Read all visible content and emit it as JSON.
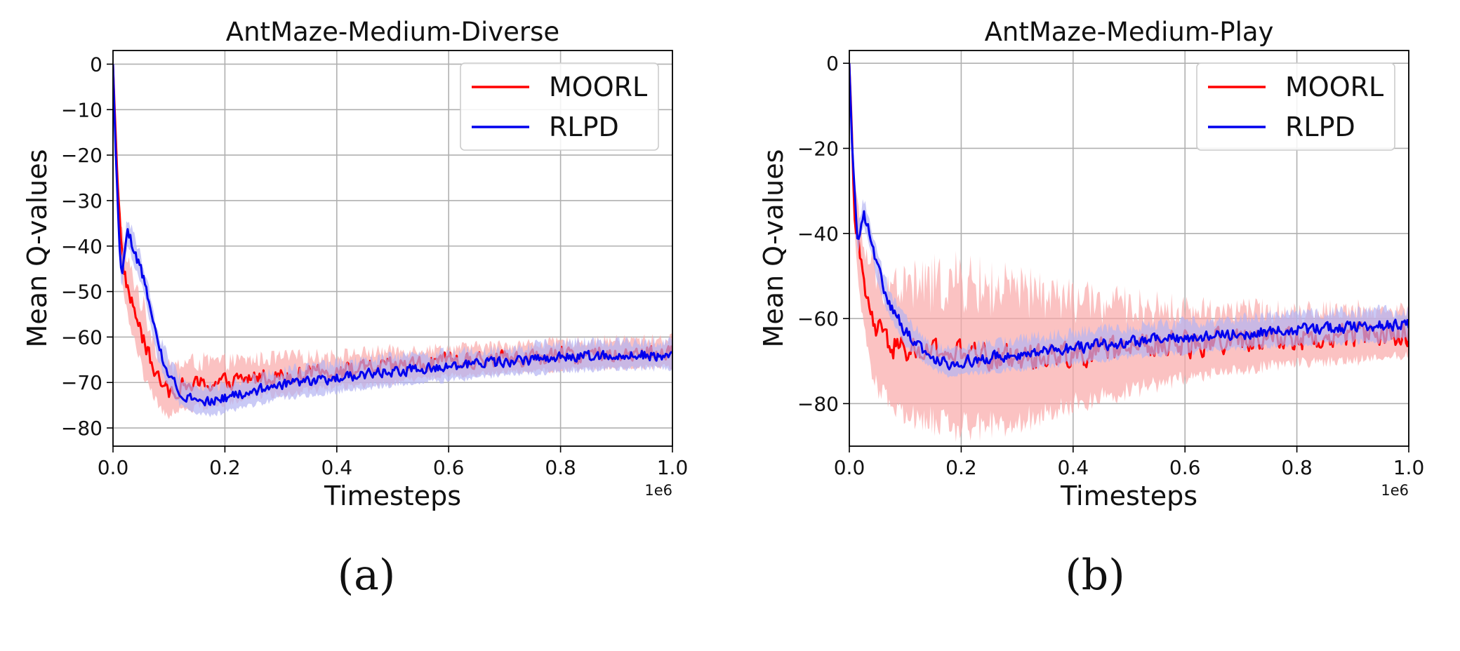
{
  "chart_data": [
    {
      "type": "line",
      "title": "AntMaze-Medium-Diverse",
      "xlabel": "Timesteps",
      "ylabel": "Mean Q-values",
      "x_offset_text": "1e6",
      "xlim": [
        0.0,
        1.0
      ],
      "ylim": [
        -84,
        3
      ],
      "xticks": [
        0.0,
        0.2,
        0.4,
        0.6,
        0.8,
        1.0
      ],
      "xtick_labels": [
        "0.0",
        "0.2",
        "0.4",
        "0.6",
        "0.8",
        "1.0"
      ],
      "yticks": [
        0,
        -10,
        -20,
        -30,
        -40,
        -50,
        -60,
        -70,
        -80
      ],
      "ytick_labels": [
        "0",
        "−10",
        "−20",
        "−30",
        "−40",
        "−50",
        "−60",
        "−70",
        "−80"
      ],
      "grid": true,
      "legend_position": "top-right",
      "caption": "(a)",
      "series": [
        {
          "name": "MOORL",
          "color": "#ff0000",
          "band_color": "#f9a8a8",
          "x": [
            0.0,
            0.005,
            0.01,
            0.015,
            0.02,
            0.03,
            0.04,
            0.05,
            0.06,
            0.07,
            0.08,
            0.09,
            0.1,
            0.12,
            0.15,
            0.2,
            0.25,
            0.3,
            0.4,
            0.5,
            0.6,
            0.7,
            0.8,
            0.9,
            1.0
          ],
          "y": [
            0,
            -15,
            -30,
            -40,
            -46,
            -51,
            -55,
            -59,
            -63,
            -66,
            -69,
            -71,
            -72,
            -71,
            -70.5,
            -70,
            -69,
            -68.5,
            -67.5,
            -66.5,
            -65.5,
            -64.8,
            -64.2,
            -63.8,
            -63.5
          ],
          "spread": [
            1,
            3,
            4,
            5,
            5,
            6,
            7,
            7,
            7,
            7,
            6,
            6,
            5,
            5,
            5,
            4.5,
            4,
            4,
            3.5,
            3.5,
            3,
            3,
            3,
            3,
            3
          ],
          "noise": 2.4
        },
        {
          "name": "RLPD",
          "color": "#0000ee",
          "band_color": "#b4b4f2",
          "x": [
            0.0,
            0.005,
            0.01,
            0.015,
            0.02,
            0.025,
            0.03,
            0.04,
            0.05,
            0.06,
            0.07,
            0.08,
            0.1,
            0.12,
            0.15,
            0.18,
            0.2,
            0.25,
            0.3,
            0.4,
            0.5,
            0.6,
            0.7,
            0.8,
            0.9,
            1.0
          ],
          "y": [
            0,
            -20,
            -35,
            -47,
            -42,
            -37,
            -38,
            -42,
            -45,
            -50,
            -56,
            -62,
            -68,
            -72,
            -74,
            -74,
            -73.5,
            -72,
            -70.5,
            -69,
            -67.5,
            -66.5,
            -65.5,
            -64.5,
            -64,
            -64
          ],
          "spread": [
            1,
            2,
            3,
            3,
            3,
            3,
            3,
            3,
            3,
            3,
            3,
            3,
            3,
            3,
            3,
            3,
            3,
            3,
            3,
            3,
            3,
            3,
            3,
            3,
            3,
            3
          ],
          "noise": 1.5
        }
      ]
    },
    {
      "type": "line",
      "title": "AntMaze-Medium-Play",
      "xlabel": "Timesteps",
      "ylabel": "Mean Q-values",
      "x_offset_text": "1e6",
      "xlim": [
        0.0,
        1.0
      ],
      "ylim": [
        -90,
        3
      ],
      "xticks": [
        0.0,
        0.2,
        0.4,
        0.6,
        0.8,
        1.0
      ],
      "xtick_labels": [
        "0.0",
        "0.2",
        "0.4",
        "0.6",
        "0.8",
        "1.0"
      ],
      "yticks": [
        0,
        -20,
        -40,
        -60,
        -80
      ],
      "ytick_labels": [
        "0",
        "−20",
        "−40",
        "−60",
        "−80"
      ],
      "grid": true,
      "legend_position": "top-right",
      "caption": "(b)",
      "series": [
        {
          "name": "MOORL",
          "color": "#ff0000",
          "band_color": "#f9a8a8",
          "x": [
            0.0,
            0.005,
            0.01,
            0.02,
            0.03,
            0.04,
            0.05,
            0.07,
            0.1,
            0.15,
            0.2,
            0.25,
            0.3,
            0.35,
            0.4,
            0.5,
            0.6,
            0.7,
            0.8,
            0.9,
            1.0
          ],
          "y": [
            0,
            -20,
            -35,
            -48,
            -55,
            -60,
            -63,
            -66,
            -67.5,
            -68,
            -68.5,
            -69,
            -69,
            -68.5,
            -68,
            -67,
            -66,
            -65,
            -64.5,
            -64,
            -63.5
          ],
          "spread": [
            1,
            4,
            6,
            8,
            10,
            12,
            13,
            14,
            15,
            16,
            17,
            16,
            15,
            14,
            12,
            10,
            8,
            7,
            6,
            6,
            5
          ],
          "noise": 4.0
        },
        {
          "name": "RLPD",
          "color": "#0000ee",
          "band_color": "#b4b4f2",
          "x": [
            0.0,
            0.005,
            0.01,
            0.015,
            0.02,
            0.025,
            0.03,
            0.04,
            0.05,
            0.07,
            0.1,
            0.13,
            0.15,
            0.18,
            0.2,
            0.3,
            0.4,
            0.5,
            0.6,
            0.7,
            0.8,
            0.9,
            1.0
          ],
          "y": [
            0,
            -18,
            -32,
            -42,
            -38,
            -35,
            -37,
            -42,
            -48,
            -56,
            -63,
            -67,
            -69,
            -70.5,
            -70,
            -68.5,
            -67,
            -65.5,
            -64.5,
            -63.5,
            -62.5,
            -62,
            -61.5
          ],
          "spread": [
            1,
            2,
            3,
            3,
            3,
            3,
            3,
            3,
            3,
            3,
            3,
            3,
            3,
            3,
            3,
            3.5,
            3.5,
            3.5,
            3.5,
            3.5,
            3.5,
            3.5,
            3.5
          ],
          "noise": 1.8
        }
      ]
    }
  ]
}
